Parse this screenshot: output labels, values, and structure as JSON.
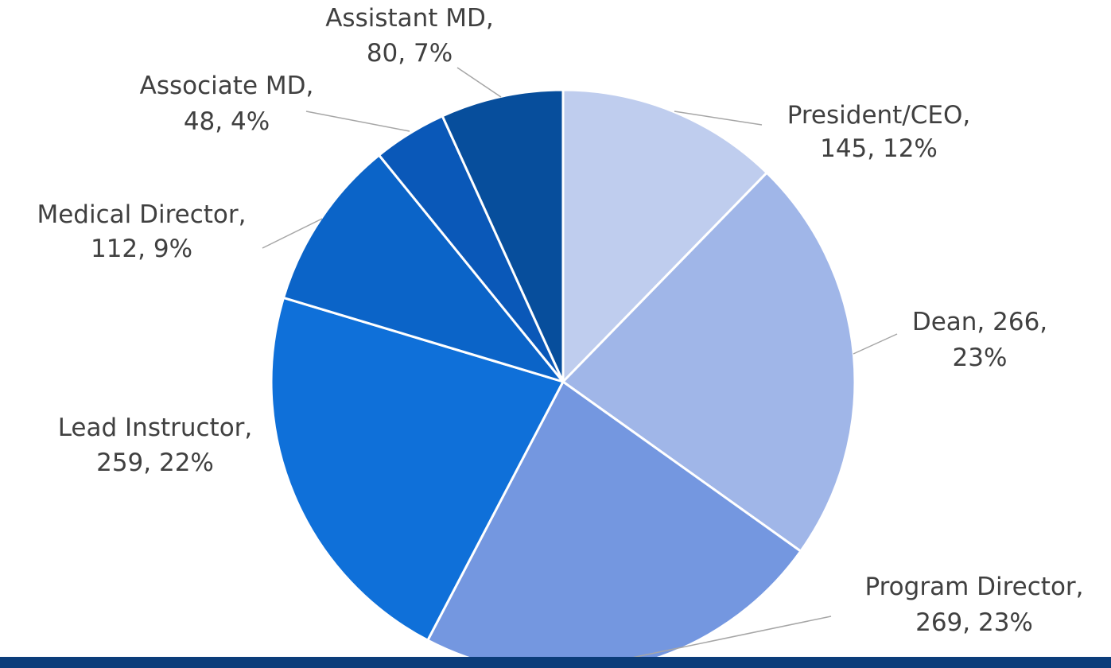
{
  "chart_data": {
    "type": "pie",
    "categories": [
      "President/CEO",
      "Dean",
      "Program Director",
      "Lead Instructor",
      "Medical Director",
      "Associate MD",
      "Assistant MD"
    ],
    "values": [
      145,
      266,
      269,
      259,
      112,
      48,
      80
    ],
    "percents": [
      12,
      23,
      23,
      22,
      9,
      4,
      7
    ],
    "value_labels": [
      [
        "President/CEO,",
        "145, 12%"
      ],
      [
        "Dean, 266,",
        "23%"
      ],
      [
        "Program Director,",
        "269, 23%"
      ],
      [
        "Lead Instructor,",
        "259, 22%"
      ],
      [
        "Medical Director,",
        "112, 9%"
      ],
      [
        "Associate MD,",
        "48, 4%"
      ],
      [
        "Assistant MD,",
        "80, 7%"
      ]
    ],
    "colors": [
      "#bfcdee",
      "#a0b6e8",
      "#7497e0",
      "#0f70d9",
      "#0b64c8",
      "#0a58b8",
      "#074e9c"
    ]
  }
}
